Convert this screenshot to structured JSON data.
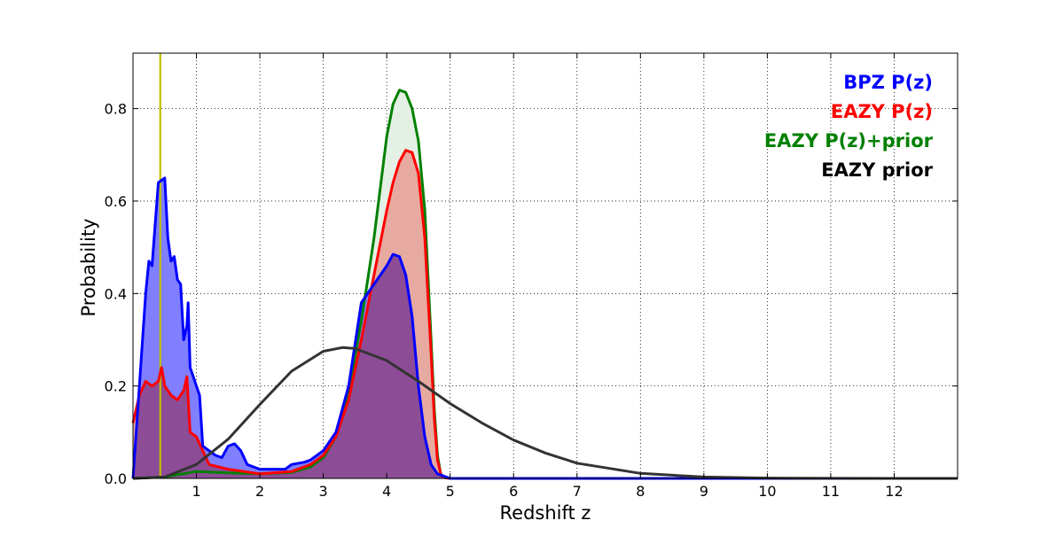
{
  "chart_data": {
    "type": "area",
    "title": "",
    "xlabel": "Redshift z",
    "ylabel": "Probability",
    "xlim": [
      0,
      13
    ],
    "ylim": [
      0,
      0.92
    ],
    "x_ticks": [
      1,
      2,
      3,
      4,
      5,
      6,
      7,
      8,
      9,
      10,
      11,
      12
    ],
    "y_ticks": [
      0.0,
      0.2,
      0.4,
      0.6,
      0.8
    ],
    "x_tick_labels": [
      "1",
      "2",
      "3",
      "4",
      "5",
      "6",
      "7",
      "8",
      "9",
      "10",
      "11",
      "12"
    ],
    "y_tick_labels": [
      "0.0",
      "0.2",
      "0.4",
      "0.6",
      "0.8"
    ],
    "grid": true,
    "grid_style": "dotted",
    "legend_position": "top-right",
    "legend": [
      {
        "label": "BPZ P(z)",
        "color": "#0000ff"
      },
      {
        "label": "EAZY P(z)",
        "color": "#ff0000"
      },
      {
        "label": "EAZY P(z)+prior",
        "color": "#008000"
      },
      {
        "label": "EAZY prior",
        "color": "#000000"
      }
    ],
    "vertical_line": {
      "x": 0.43,
      "color": "#bfbf00"
    },
    "series": [
      {
        "name": "EAZY prior",
        "color": "#333333",
        "fill": null,
        "x": [
          0,
          0.5,
          1,
          1.5,
          2,
          2.5,
          3,
          3.3,
          3.5,
          4,
          4.5,
          5,
          5.5,
          6,
          6.5,
          7,
          8,
          9,
          10,
          11,
          12,
          13
        ],
        "y": [
          0,
          0.003,
          0.03,
          0.085,
          0.16,
          0.232,
          0.275,
          0.283,
          0.281,
          0.255,
          0.21,
          0.162,
          0.12,
          0.083,
          0.055,
          0.033,
          0.011,
          0.003,
          0.0008,
          0.0002,
          5e-05,
          0
        ]
      },
      {
        "name": "EAZY P(z)+prior",
        "color": "#008000",
        "fill": "#e4f0e4",
        "x": [
          0,
          0.5,
          1,
          1.5,
          2,
          2.5,
          2.8,
          3.0,
          3.2,
          3.4,
          3.6,
          3.7,
          3.8,
          3.9,
          4.0,
          4.1,
          4.2,
          4.3,
          4.4,
          4.5,
          4.6,
          4.7,
          4.75,
          4.8,
          4.85,
          4.9,
          5.0,
          13
        ],
        "y": [
          0,
          0.003,
          0.015,
          0.012,
          0.01,
          0.013,
          0.025,
          0.045,
          0.09,
          0.19,
          0.34,
          0.43,
          0.52,
          0.63,
          0.74,
          0.81,
          0.84,
          0.835,
          0.8,
          0.73,
          0.58,
          0.3,
          0.15,
          0.05,
          0.01,
          0.002,
          0,
          0
        ]
      },
      {
        "name": "EAZY P(z)",
        "color": "#ff0000",
        "fill": "#e6aaa0",
        "x": [
          0,
          0.1,
          0.2,
          0.3,
          0.4,
          0.45,
          0.5,
          0.6,
          0.7,
          0.8,
          0.85,
          0.9,
          1.0,
          1.1,
          1.2,
          1.5,
          2.0,
          2.5,
          2.8,
          3.0,
          3.2,
          3.4,
          3.6,
          3.8,
          4.0,
          4.1,
          4.2,
          4.3,
          4.4,
          4.5,
          4.6,
          4.7,
          4.75,
          4.8,
          4.85,
          4.9,
          5.0,
          13
        ],
        "y": [
          0.12,
          0.18,
          0.21,
          0.2,
          0.21,
          0.24,
          0.2,
          0.18,
          0.17,
          0.19,
          0.22,
          0.1,
          0.09,
          0.06,
          0.03,
          0.02,
          0.01,
          0.015,
          0.03,
          0.05,
          0.09,
          0.17,
          0.3,
          0.44,
          0.58,
          0.64,
          0.685,
          0.71,
          0.705,
          0.66,
          0.52,
          0.27,
          0.13,
          0.04,
          0.01,
          0.002,
          0,
          0
        ]
      },
      {
        "name": "BPZ P(z)",
        "color": "#0000ff",
        "fill": "#7f7fff",
        "x": [
          0,
          0.1,
          0.2,
          0.25,
          0.3,
          0.35,
          0.4,
          0.45,
          0.5,
          0.55,
          0.6,
          0.65,
          0.7,
          0.75,
          0.8,
          0.85,
          0.87,
          0.9,
          0.95,
          1.0,
          1.05,
          1.1,
          1.2,
          1.3,
          1.4,
          1.5,
          1.6,
          1.7,
          1.8,
          1.9,
          2.0,
          2.2,
          2.4,
          2.5,
          2.7,
          2.8,
          3.0,
          3.2,
          3.4,
          3.6,
          3.8,
          4.0,
          4.1,
          4.2,
          4.3,
          4.4,
          4.5,
          4.6,
          4.7,
          4.8,
          5.0,
          13
        ],
        "y": [
          0,
          0.2,
          0.4,
          0.47,
          0.46,
          0.55,
          0.64,
          0.645,
          0.65,
          0.52,
          0.47,
          0.48,
          0.43,
          0.42,
          0.3,
          0.33,
          0.38,
          0.24,
          0.22,
          0.2,
          0.18,
          0.07,
          0.06,
          0.05,
          0.045,
          0.07,
          0.075,
          0.06,
          0.03,
          0.025,
          0.02,
          0.02,
          0.02,
          0.03,
          0.035,
          0.04,
          0.06,
          0.1,
          0.2,
          0.38,
          0.42,
          0.46,
          0.485,
          0.48,
          0.44,
          0.35,
          0.2,
          0.09,
          0.03,
          0.01,
          0,
          0
        ]
      },
      {
        "name": "EAZY P(z) x BPZ overlap",
        "color": "none",
        "fill": "#8c4c96",
        "x": [
          0,
          0.1,
          0.2,
          0.3,
          0.4,
          0.45,
          0.5,
          0.6,
          0.7,
          0.8,
          0.85,
          0.9,
          1.0,
          1.1,
          1.2,
          1.5,
          2.0,
          2.5,
          2.8,
          3.0,
          3.2,
          3.4,
          3.6,
          3.8,
          4.0,
          4.1,
          4.2,
          4.3,
          4.4,
          4.5,
          4.6,
          4.7,
          4.8,
          5.0,
          13
        ],
        "y": [
          0,
          0.18,
          0.21,
          0.2,
          0.21,
          0.24,
          0.2,
          0.18,
          0.17,
          0.19,
          0.22,
          0.1,
          0.09,
          0.06,
          0.03,
          0.02,
          0.01,
          0.015,
          0.03,
          0.05,
          0.09,
          0.17,
          0.3,
          0.42,
          0.46,
          0.485,
          0.48,
          0.44,
          0.35,
          0.2,
          0.09,
          0.03,
          0.01,
          0,
          0
        ]
      }
    ]
  }
}
